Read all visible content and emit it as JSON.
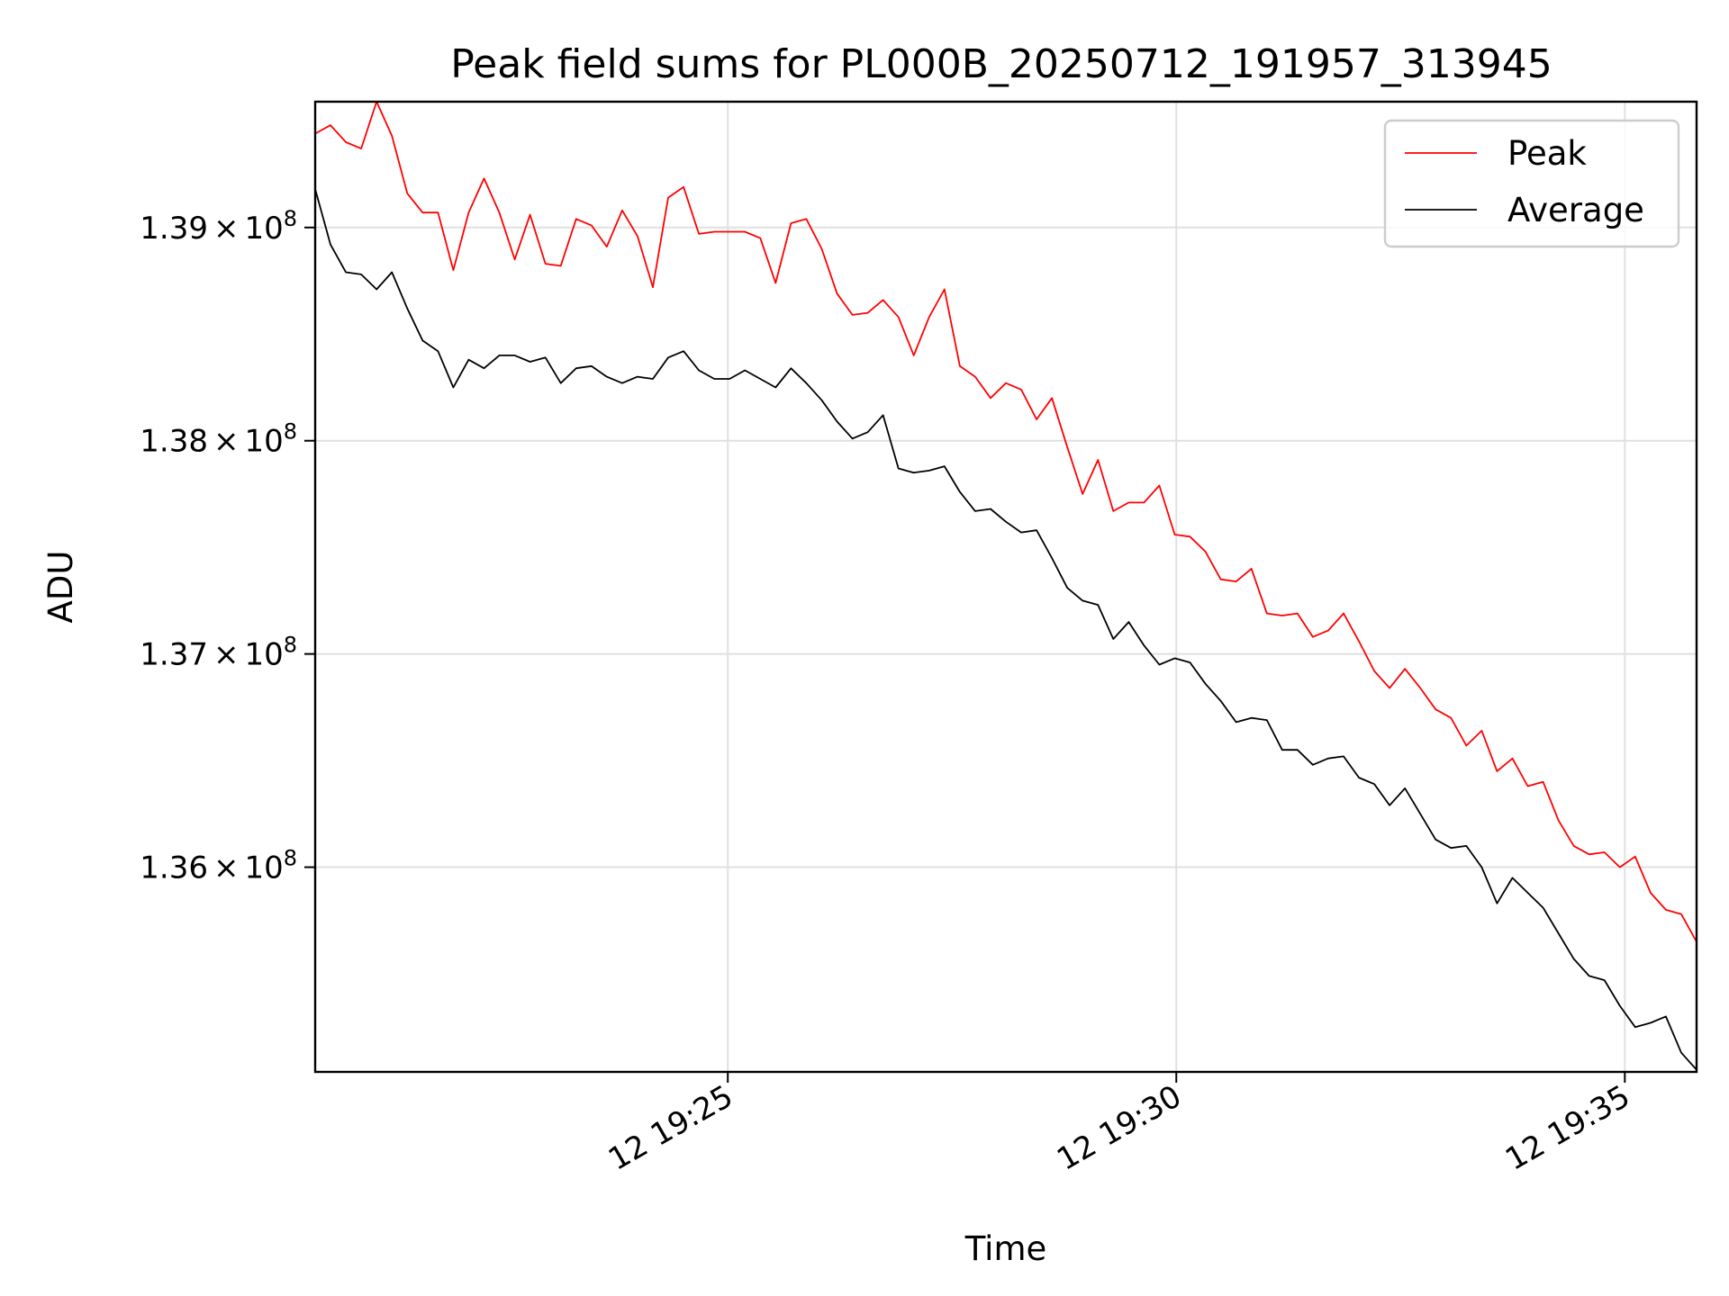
{
  "chart_data": {
    "type": "line",
    "title": "Peak field sums for PL000B_20250712_191957_313945",
    "xlabel": "Time",
    "ylabel": "ADU",
    "x_start": "12 19:20:24",
    "x_end": "12 19:35:48",
    "xlim": [
      "12 19:20:24",
      "12 19:35:48"
    ],
    "ylim": [
      135040000,
      139590000
    ],
    "x_ticks": [
      {
        "value": "12 19:25:00",
        "label": "12 19:25"
      },
      {
        "value": "12 19:30:00",
        "label": "12 19:30"
      },
      {
        "value": "12 19:35:00",
        "label": "12 19:35"
      }
    ],
    "y_ticks": [
      {
        "value": 136000000,
        "mantissa": "1.36",
        "base": "10",
        "exp": "8"
      },
      {
        "value": 137000000,
        "mantissa": "1.37",
        "base": "10",
        "exp": "8"
      },
      {
        "value": 138000000,
        "mantissa": "1.38",
        "base": "10",
        "exp": "8"
      },
      {
        "value": 139000000,
        "mantissa": "1.39",
        "base": "10",
        "exp": "8"
      }
    ],
    "grid": true,
    "legend_position": "upper right",
    "series": [
      {
        "name": "Peak",
        "color": "#ff0000",
        "values": [
          139440000,
          139480000,
          139400000,
          139370000,
          139590000,
          139430000,
          139160000,
          139070000,
          139070000,
          138800000,
          139070000,
          139230000,
          139070000,
          138850000,
          139060000,
          138830000,
          138820000,
          139040000,
          139010000,
          138910000,
          139080000,
          138960000,
          138720000,
          139140000,
          139190000,
          138970000,
          138980000,
          138980000,
          138980000,
          138950000,
          138740000,
          139020000,
          139040000,
          138900000,
          138690000,
          138590000,
          138600000,
          138660000,
          138580000,
          138400000,
          138580000,
          138710000,
          138350000,
          138300000,
          138200000,
          138270000,
          138240000,
          138100000,
          138200000,
          137970000,
          137750000,
          137910000,
          137670000,
          137710000,
          137710000,
          137790000,
          137560000,
          137550000,
          137480000,
          137350000,
          137340000,
          137400000,
          137190000,
          137180000,
          137190000,
          137080000,
          137110000,
          137190000,
          137060000,
          136920000,
          136840000,
          136930000,
          136840000,
          136740000,
          136700000,
          136570000,
          136640000,
          136450000,
          136510000,
          136380000,
          136400000,
          136220000,
          136100000,
          136060000,
          136070000,
          136000000,
          136050000,
          135880000,
          135800000,
          135780000,
          135650000
        ]
      },
      {
        "name": "Average",
        "color": "#000000",
        "values": [
          139180000,
          138920000,
          138790000,
          138780000,
          138710000,
          138790000,
          138620000,
          138470000,
          138420000,
          138250000,
          138380000,
          138340000,
          138400000,
          138400000,
          138370000,
          138390000,
          138270000,
          138340000,
          138350000,
          138300000,
          138270000,
          138300000,
          138290000,
          138390000,
          138420000,
          138330000,
          138290000,
          138290000,
          138330000,
          138290000,
          138250000,
          138340000,
          138270000,
          138190000,
          138090000,
          138010000,
          138040000,
          138120000,
          137870000,
          137850000,
          137860000,
          137880000,
          137760000,
          137670000,
          137680000,
          137620000,
          137570000,
          137580000,
          137450000,
          137310000,
          137250000,
          137230000,
          137070000,
          137150000,
          137040000,
          136950000,
          136980000,
          136960000,
          136860000,
          136780000,
          136680000,
          136700000,
          136690000,
          136550000,
          136550000,
          136480000,
          136510000,
          136520000,
          136420000,
          136390000,
          136290000,
          136370000,
          136250000,
          136130000,
          136090000,
          136100000,
          136000000,
          135830000,
          135950000,
          135880000,
          135810000,
          135690000,
          135570000,
          135490000,
          135470000,
          135350000,
          135250000,
          135270000,
          135300000,
          135130000,
          135050000
        ]
      }
    ]
  }
}
